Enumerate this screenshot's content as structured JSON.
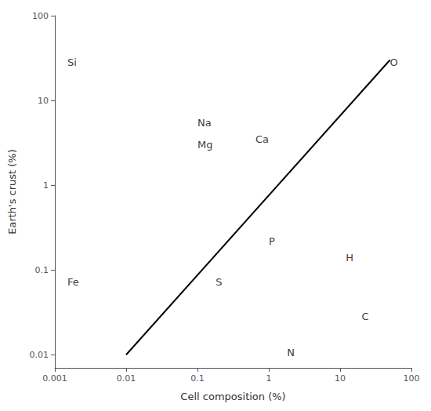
{
  "chart_data": {
    "type": "line",
    "xlabel": "Cell composition (%)",
    "ylabel": "Earth's crust (%)",
    "log": true,
    "grid": false,
    "xlim": [
      0.001,
      100
    ],
    "ylim": [
      0.007,
      100
    ],
    "xticks": [
      0.001,
      0.01,
      0.1,
      1,
      10,
      100
    ],
    "yticks": [
      0.01,
      0.1,
      1,
      10,
      100
    ],
    "series": [
      {
        "type": "line",
        "color": "#000000",
        "marker": "none",
        "x": [
          0.01,
          50
        ],
        "values": [
          0.01,
          30
        ]
      }
    ],
    "annotations": [
      {
        "text": "Si",
        "x": 0.0015,
        "y": 28
      },
      {
        "text": "Fe",
        "x": 0.0015,
        "y": 0.072
      },
      {
        "text": "Na",
        "x": 0.1,
        "y": 5.5
      },
      {
        "text": "Mg",
        "x": 0.1,
        "y": 3.0
      },
      {
        "text": "Ca",
        "x": 0.65,
        "y": 3.5
      },
      {
        "text": "O",
        "x": 50,
        "y": 28
      },
      {
        "text": "P",
        "x": 1.0,
        "y": 0.22
      },
      {
        "text": "H",
        "x": 12,
        "y": 0.14
      },
      {
        "text": "S",
        "x": 0.18,
        "y": 0.072
      },
      {
        "text": "C",
        "x": 20,
        "y": 0.028
      },
      {
        "text": "N",
        "x": 1.8,
        "y": 0.0105
      }
    ]
  }
}
